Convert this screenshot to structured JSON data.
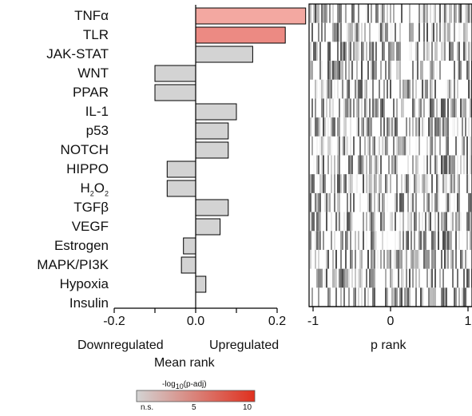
{
  "chart_data": [
    {
      "type": "bar",
      "orientation": "horizontal",
      "categories": [
        "TNFα",
        "TLR",
        "JAK-STAT",
        "WNT",
        "PPAR",
        "IL-1",
        "p53",
        "NOTCH",
        "HIPPO",
        "H2O2",
        "TGFβ",
        "VEGF",
        "Estrogen",
        "MAPK/PI3K",
        "Hypoxia",
        "Insulin"
      ],
      "values": [
        0.27,
        0.22,
        0.14,
        -0.1,
        -0.1,
        0.1,
        0.08,
        0.08,
        -0.07,
        -0.07,
        0.08,
        0.06,
        -0.03,
        -0.035,
        0.025,
        0.0
      ],
      "significance": [
        10,
        7,
        0,
        0,
        0,
        0,
        0,
        0,
        0,
        0,
        0,
        0,
        0,
        0,
        0,
        0
      ],
      "xlabel": "Mean rank",
      "xlim": [
        -0.2,
        0.27
      ],
      "xticks": [
        "-0.2",
        "0.0",
        "0.2"
      ],
      "direction_labels": {
        "down": "Downregulated",
        "up": "Upregulated"
      },
      "colorbar": {
        "title": "-log10(p-adj)",
        "ticks": [
          "n.s.",
          "5",
          "10"
        ],
        "low_color": "#d3d3d3",
        "high_color": "#e0301e"
      }
    },
    {
      "type": "heatmap",
      "rows": [
        "TNFα",
        "TLR",
        "JAK-STAT",
        "WNT",
        "PPAR",
        "IL-1",
        "p53",
        "NOTCH",
        "HIPPO",
        "H2O2",
        "TGFβ",
        "VEGF",
        "Estrogen",
        "MAPK/PI3K",
        "Hypoxia",
        "Insulin"
      ],
      "xlabel": "p rank",
      "xlim": [
        -1,
        1
      ],
      "xticks": [
        "-1",
        "0",
        "1"
      ]
    }
  ],
  "labels": {
    "h2o2": {
      "base": "H",
      "sub1": "2",
      "mid": "O",
      "sub2": "2"
    },
    "colorbar_title": {
      "pre": "-log",
      "sub": "10",
      "post": "(p-adj)"
    }
  }
}
